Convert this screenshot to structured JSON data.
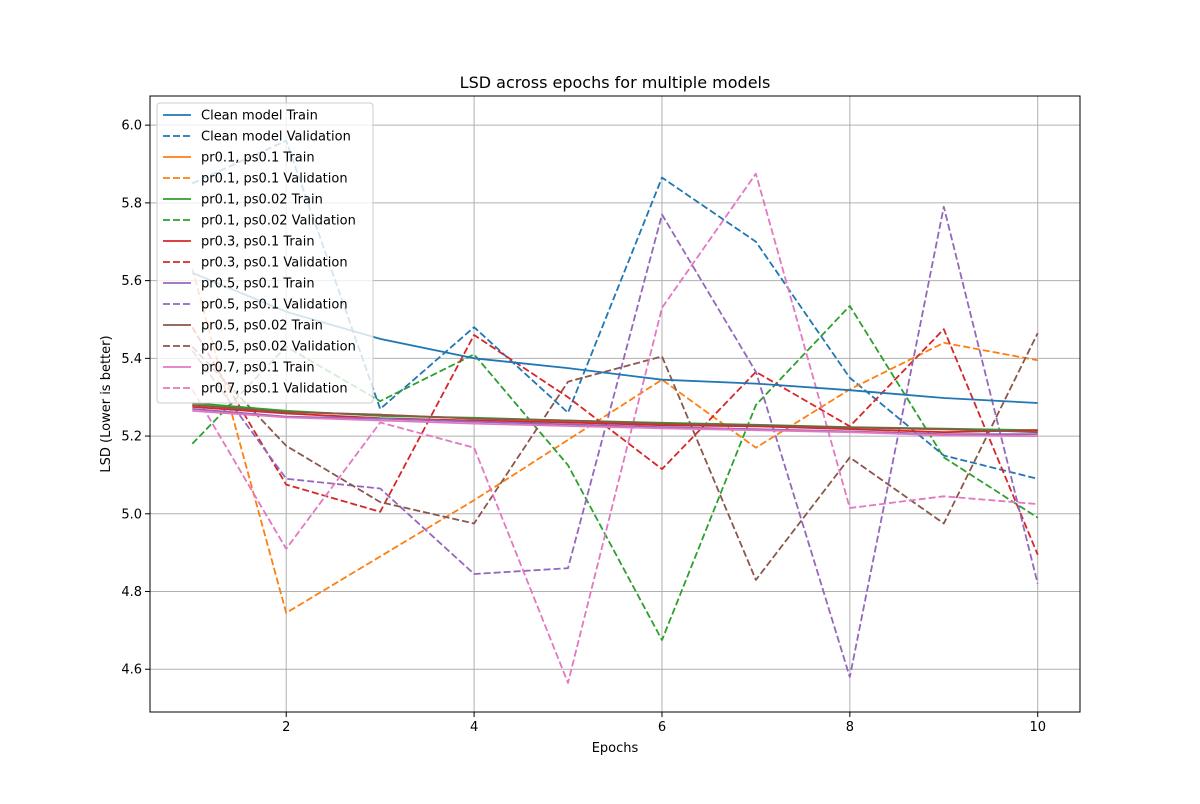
{
  "chart_data": {
    "type": "line",
    "title": "LSD across epochs for multiple models",
    "xlabel": "Epochs",
    "ylabel": "LSD (Lower is better)",
    "xlim": [
      0.55,
      10.45
    ],
    "ylim": [
      4.49,
      6.075
    ],
    "x_ticks": [
      2,
      4,
      6,
      8,
      10
    ],
    "y_ticks": [
      4.6,
      4.8,
      5.0,
      5.2,
      5.4,
      5.6,
      5.8,
      6.0
    ],
    "grid": true,
    "legend_position": "upper-left",
    "x": [
      1,
      2,
      3,
      4,
      5,
      6,
      7,
      8,
      9,
      10
    ],
    "series": [
      {
        "name": "Clean model Train",
        "color": "#1f77b4",
        "dash": "solid",
        "values": [
          5.62,
          5.52,
          5.45,
          5.4,
          5.375,
          5.345,
          5.335,
          5.318,
          5.298,
          5.285
        ]
      },
      {
        "name": "Clean model Validation",
        "color": "#1f77b4",
        "dash": "dashed",
        "values": [
          5.85,
          5.96,
          5.27,
          5.48,
          5.26,
          5.865,
          5.7,
          5.35,
          5.15,
          5.09
        ]
      },
      {
        "name": "pr0.1, ps0.1 Train",
        "color": "#ff7f0e",
        "dash": "solid",
        "values": [
          5.28,
          5.262,
          5.255,
          5.245,
          5.237,
          5.232,
          5.226,
          5.222,
          5.217,
          5.212
        ]
      },
      {
        "name": "pr0.1, ps0.1 Validation",
        "color": "#ff7f0e",
        "dash": "dashed",
        "values": [
          5.63,
          4.745,
          4.89,
          5.035,
          5.19,
          5.345,
          5.17,
          5.32,
          5.44,
          5.395
        ]
      },
      {
        "name": "pr0.1, ps0.02 Train",
        "color": "#2ca02c",
        "dash": "solid",
        "values": [
          5.285,
          5.265,
          5.252,
          5.247,
          5.24,
          5.234,
          5.229,
          5.223,
          5.219,
          5.215
        ]
      },
      {
        "name": "pr0.1, ps0.02 Validation",
        "color": "#2ca02c",
        "dash": "dashed",
        "values": [
          5.18,
          5.43,
          5.29,
          5.41,
          5.125,
          4.675,
          5.28,
          5.535,
          5.145,
          4.99
        ]
      },
      {
        "name": "pr0.3, ps0.1 Train",
        "color": "#d62728",
        "dash": "solid",
        "values": [
          5.275,
          5.258,
          5.246,
          5.24,
          5.235,
          5.228,
          5.225,
          5.218,
          5.21,
          5.215
        ]
      },
      {
        "name": "pr0.3, ps0.1 Validation",
        "color": "#d62728",
        "dash": "dashed",
        "values": [
          5.48,
          5.075,
          5.005,
          5.46,
          5.3,
          5.115,
          5.365,
          5.225,
          5.475,
          4.895
        ]
      },
      {
        "name": "pr0.5, ps0.1 Train",
        "color": "#9467bd",
        "dash": "solid",
        "values": [
          5.27,
          5.25,
          5.245,
          5.237,
          5.23,
          5.223,
          5.218,
          5.212,
          5.205,
          5.205
        ]
      },
      {
        "name": "pr0.5, ps0.1 Validation",
        "color": "#9467bd",
        "dash": "dashed",
        "values": [
          5.42,
          5.09,
          5.065,
          4.845,
          4.86,
          5.77,
          5.365,
          4.58,
          5.79,
          4.82
        ]
      },
      {
        "name": "pr0.5, ps0.02 Train",
        "color": "#8c564b",
        "dash": "solid",
        "values": [
          5.28,
          5.262,
          5.255,
          5.245,
          5.24,
          5.232,
          5.228,
          5.222,
          5.218,
          5.21
        ]
      },
      {
        "name": "pr0.5, ps0.02 Validation",
        "color": "#8c564b",
        "dash": "dashed",
        "values": [
          5.43,
          5.175,
          5.03,
          4.975,
          5.34,
          5.405,
          4.83,
          5.145,
          4.975,
          5.465
        ]
      },
      {
        "name": "pr0.7, ps0.1 Train",
        "color": "#e377c2",
        "dash": "solid",
        "values": [
          5.265,
          5.248,
          5.24,
          5.232,
          5.226,
          5.22,
          5.215,
          5.21,
          5.202,
          5.2
        ]
      },
      {
        "name": "pr0.7, ps0.1 Validation",
        "color": "#e377c2",
        "dash": "dashed",
        "values": [
          5.32,
          4.91,
          5.235,
          5.17,
          4.565,
          5.53,
          5.875,
          5.015,
          5.045,
          5.025
        ]
      }
    ]
  }
}
